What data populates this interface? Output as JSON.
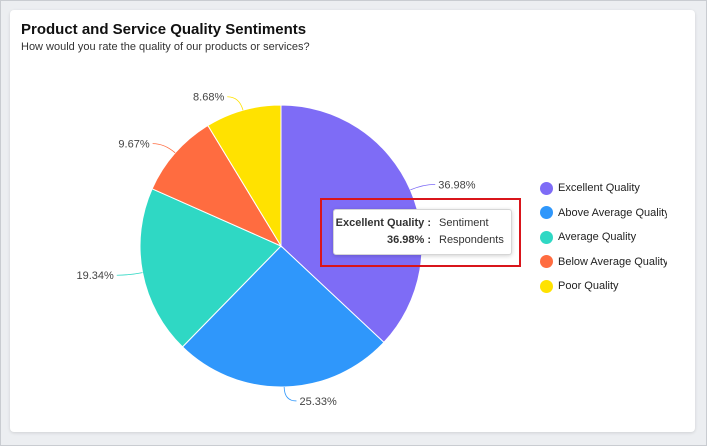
{
  "header": {
    "title": "Product and Service Quality Sentiments",
    "subtitle": "How would you rate the quality of our products or services?"
  },
  "chart_data": {
    "type": "pie",
    "categories": [
      "Excellent Quality",
      "Above Average Quality",
      "Average Quality",
      "Below Average Quality",
      "Poor Quality"
    ],
    "values": [
      36.98,
      25.33,
      19.34,
      9.67,
      8.68
    ],
    "data_labels": [
      "36.98%",
      "25.33%",
      "19.34%",
      "9.67%",
      "8.68%"
    ],
    "colors": [
      "#7e6cf6",
      "#2f97fb",
      "#2fd8c4",
      "#ff6c40",
      "#ffe200"
    ],
    "legend_position": "right"
  },
  "tooltip": {
    "row1_key": "Excellent Quality :",
    "row1_value": "Sentiment",
    "row2_key": "36.98% :",
    "row2_value": "Respondents"
  },
  "highlight_color": "#d9151b"
}
